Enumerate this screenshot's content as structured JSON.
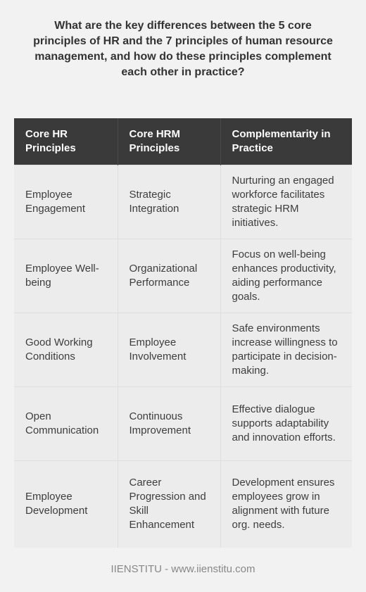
{
  "title": "What are the key differences between the 5 core principles of HR and the 7 principles of human resource management, and how do these principles complement each other in practice?",
  "table": {
    "headers": [
      "Core HR Principles",
      "Core HRM Principles",
      "Complementarity in Practice"
    ],
    "rows": [
      [
        "Employee Engagement",
        "Strategic Integration",
        "Nurturing an engaged workforce facilitates strategic HRM initiatives."
      ],
      [
        "Employee Well-being",
        "Organizational Performance",
        "Focus on well-being enhances productivity, aiding performance goals."
      ],
      [
        "Good Working Conditions",
        "Employee Involvement",
        "Safe environments increase willingness to participate in decision-making."
      ],
      [
        "Open Communication",
        "Continuous Improvement",
        "Effective dialogue supports adaptability and innovation efforts."
      ],
      [
        "Employee Development",
        "Career Progression and Skill Enhancement",
        "Development ensures employees grow in alignment with future org. needs."
      ]
    ]
  },
  "footer": "IIENSTITU - www.iienstitu.com"
}
